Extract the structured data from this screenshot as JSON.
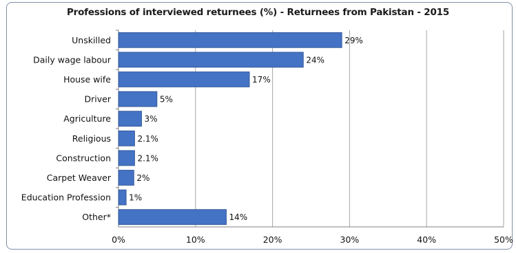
{
  "chart_data": {
    "type": "bar",
    "orientation": "horizontal",
    "title": "Professions of interviewed returnees (%) - Returnees from Pakistan - 2015",
    "categories": [
      "Unskilled",
      "Daily wage labour",
      "House wife",
      "Driver",
      "Agriculture",
      "Religious",
      "Construction",
      "Carpet Weaver",
      "Education Profession",
      "Other*"
    ],
    "values": [
      29,
      24,
      17,
      5,
      3,
      2.1,
      2.1,
      2,
      1,
      14
    ],
    "value_labels": [
      "29%",
      "24%",
      "17%",
      "5%",
      "3%",
      "2.1%",
      "2.1%",
      "2%",
      "1%",
      "14%"
    ],
    "xlim": [
      0,
      50
    ],
    "x_ticks": [
      0,
      10,
      20,
      30,
      40,
      50
    ],
    "x_tick_labels": [
      "0%",
      "10%",
      "20%",
      "30%",
      "40%",
      "50%"
    ],
    "xlabel": "",
    "ylabel": "",
    "grid": "vertical",
    "legend": "none",
    "colors": {
      "bar": "#4472c4",
      "bar_edge": "#2f528f",
      "grid": "#a6a6a6",
      "frame": "#7f8fa6"
    }
  }
}
